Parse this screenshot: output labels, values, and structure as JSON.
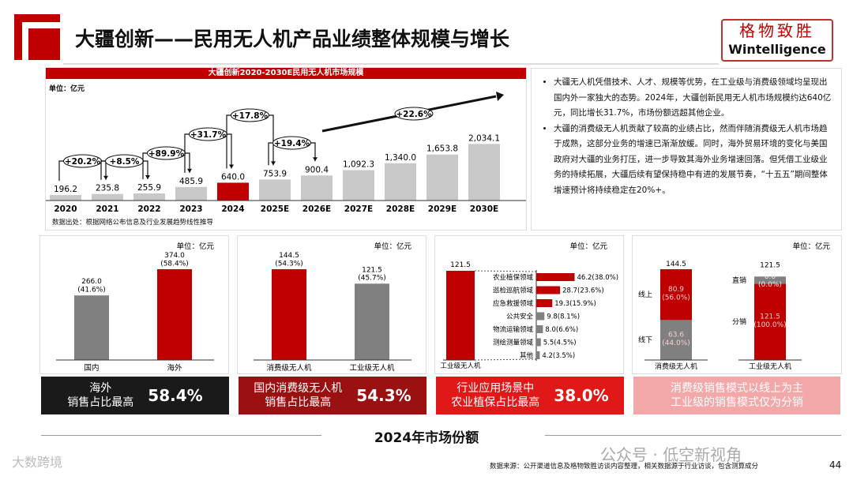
{
  "header": {
    "title": "大疆创新——民用无人机产品业绩整体规模与增长",
    "brand_cn": "格物致胜",
    "brand_en": "Wintelligence"
  },
  "chart_data": [
    {
      "type": "bar",
      "title": "大疆创新2020-2030E民用无人机市场规模",
      "unit": "单位：亿元",
      "categories": [
        "2020",
        "2021",
        "2022",
        "2023",
        "2024",
        "2025E",
        "2026E",
        "2027E",
        "2028E",
        "2029E",
        "2030E"
      ],
      "values": [
        196.2,
        235.8,
        255.9,
        485.9,
        640.0,
        753.9,
        900.4,
        1092.3,
        1340.0,
        1653.8,
        2034.1
      ],
      "value_labels": [
        "196.2",
        "235.8",
        "255.9",
        "485.9",
        "640.0",
        "753.9",
        "900.4",
        "1,092.3",
        "1,340.0",
        "1,653.8",
        "2,034.1"
      ],
      "highlight": "2024",
      "colors": {
        "bar": "#c8c8c8",
        "highlight": "#c00000"
      },
      "growth": [
        {
          "from": "2020",
          "to": "2021",
          "label": "+20.2%"
        },
        {
          "from": "2021",
          "to": "2022",
          "label": "+8.5%"
        },
        {
          "from": "2022",
          "to": "2023",
          "label": "+89.9%"
        },
        {
          "from": "2023",
          "to": "2024",
          "label": "+31.7%"
        },
        {
          "from": "2024",
          "to": "2025E",
          "label": "+17.8%"
        },
        {
          "from": "2025E",
          "to": "2026E",
          "label": "+19.4%"
        },
        {
          "from": "2026E",
          "to": "2030E",
          "label": "+22.6%"
        }
      ],
      "source": "数据出处：根据网络公布信息及行业发展趋势线性推导"
    },
    {
      "type": "bar",
      "unit": "单位：亿元",
      "categories": [
        "国内",
        "海外"
      ],
      "values": [
        266.0,
        374.0
      ],
      "value_labels": [
        "266.0\n(41.6%)",
        "374.0\n(58.4%)"
      ],
      "colors": [
        "#808080",
        "#c00000"
      ]
    },
    {
      "type": "bar",
      "unit": "单位：亿元",
      "categories": [
        "消费级无人机",
        "工业级无人机"
      ],
      "values": [
        144.5,
        121.5
      ],
      "value_labels": [
        "144.5\n(54.3%)",
        "121.5\n(45.7%)"
      ],
      "colors": [
        "#c00000",
        "#808080"
      ]
    },
    {
      "type": "bar",
      "unit": "单位：亿元",
      "total_label": "121.5",
      "total_category": "工业级无人机",
      "categories": [
        "农业植保领域",
        "巡检巡航领域",
        "应急救援领域",
        "公共安全",
        "物流运输领域",
        "测绘测量领域",
        "其他"
      ],
      "values": [
        46.2,
        28.7,
        19.3,
        9.8,
        8.0,
        5.5,
        4.2
      ],
      "value_labels": [
        "46.2(38.0%)",
        "28.7(23.6%)",
        "19.3(15.9%)",
        "9.8(8.1%)",
        "8.0(6.6%)",
        "5.5(4.5%)",
        "4.2(3.5%)"
      ]
    },
    {
      "type": "bar",
      "stacked": true,
      "unit": "单位：亿元",
      "categories": [
        "消费级无人机",
        "工业级无人机"
      ],
      "totals": [
        "144.5",
        "121.5"
      ],
      "series": [
        {
          "name_cons": "线下",
          "name_ind": "分销",
          "values": [
            63.6,
            121.5
          ],
          "labels": [
            "63.6\n(44.0%)",
            "121.5\n(100.0%)"
          ]
        },
        {
          "name_cons": "线上",
          "name_ind": "直销",
          "values": [
            80.9,
            0.0
          ],
          "labels": [
            "80.9\n(56.0%)",
            "0.0\n(0.0%)"
          ]
        }
      ]
    }
  ],
  "text": {
    "bullets": [
      "大疆无人机凭借技术、人才、规模等优势，在工业级与消费级领域均呈现出国内外一家独大的态势。2024年，大疆创新民用无人机市场规模约达640亿元，同比增长31.7%，市场份额远超其他企业。",
      "大疆的消费级无人机贡献了较高的业绩占比，然而伴随消费级无人机市场趋于成熟，这部分业务的增速已渐渐放缓。同时，海外贸易环境的变化与美国政府对大疆的业务打压，进一步导致其海外业务增速回落。但凭借工业级业务的持续拓展，大疆后续有望保持稳中有进的发展节奏，“十五五”期间整体增速预计将持续稳定在20%+。"
    ]
  },
  "callouts": [
    {
      "text": "海外\n销售占比最高",
      "pct": "58.4%",
      "color": "#1a1a1a"
    },
    {
      "text": "国内消费级无人机\n销售占比最高",
      "pct": "54.3%",
      "color": "#9b1010"
    },
    {
      "text": "行业应用场景中\n农业植保占比最高",
      "pct": "38.0%",
      "color": "#e01818"
    },
    {
      "text": "消费级销售模式以线上为主\n工业级的销售模式仅为分销",
      "pct": "",
      "color": "#f2a8a8"
    }
  ],
  "footer": {
    "share_label": "2024年市场份额",
    "source": "数据来源：公开渠道信息及格物致胜访谈内容整理，相关数据源于行业访谈，包含测算成分",
    "page": "44",
    "watermark_left": "大数跨境",
    "watermark_right": "公众号 · 低空新视角"
  }
}
